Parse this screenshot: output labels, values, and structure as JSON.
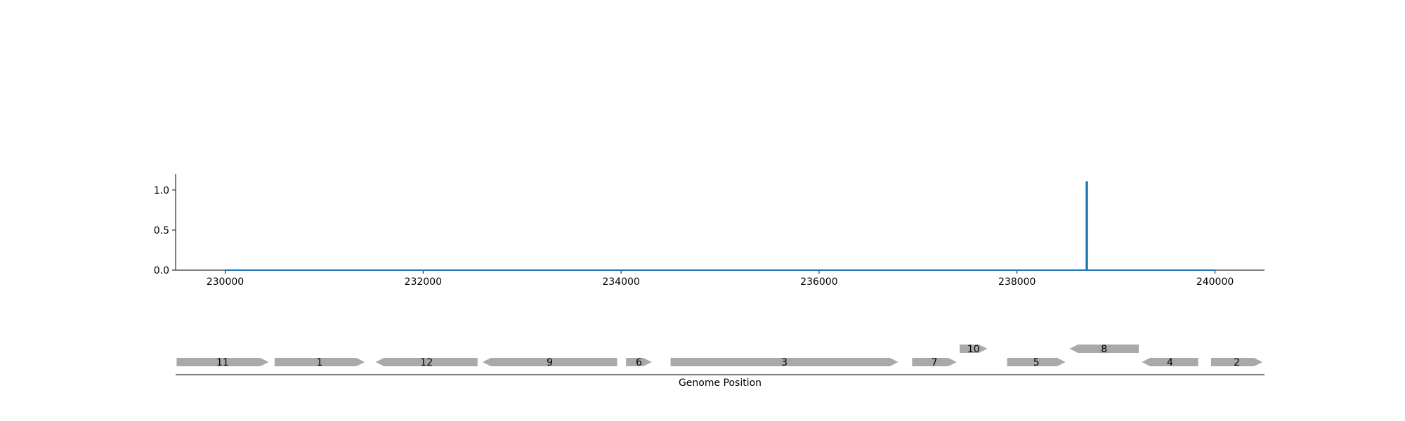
{
  "chart_data": {
    "type": "line",
    "title": "",
    "xlabel": "Genome Position",
    "ylabel": "",
    "xlim": [
      229500,
      240500
    ],
    "ylim": [
      0,
      1.2
    ],
    "x_ticks": [
      230000,
      232000,
      234000,
      236000,
      238000,
      240000
    ],
    "x_tick_labels": [
      "230000",
      "232000",
      "234000",
      "236000",
      "238000",
      "240000"
    ],
    "y_ticks": [
      0.0,
      0.5,
      1.0
    ],
    "y_tick_labels": [
      "0.0",
      "0.5",
      "1.0"
    ],
    "grid": false,
    "series": [
      {
        "color": "#1f77b4",
        "x": [
          230000,
          238700,
          238700,
          238710,
          238710,
          240000
        ],
        "y": [
          0,
          0,
          1.1,
          1.1,
          0,
          0
        ]
      }
    ]
  },
  "genes": {
    "color": "#a9a9a9",
    "items": [
      {
        "label": "11",
        "start": 229510,
        "end": 230440,
        "strand": 1,
        "row": 0
      },
      {
        "label": "1",
        "start": 230500,
        "end": 231410,
        "strand": 1,
        "row": 0
      },
      {
        "label": "12",
        "start": 231520,
        "end": 232550,
        "strand": -1,
        "row": 0
      },
      {
        "label": "9",
        "start": 232600,
        "end": 233960,
        "strand": -1,
        "row": 0
      },
      {
        "label": "6",
        "start": 234050,
        "end": 234310,
        "strand": 1,
        "row": 0
      },
      {
        "label": "3",
        "start": 234500,
        "end": 236800,
        "strand": 1,
        "row": 0
      },
      {
        "label": "7",
        "start": 236940,
        "end": 237390,
        "strand": 1,
        "row": 0
      },
      {
        "label": "10",
        "start": 237420,
        "end": 237700,
        "strand": 1,
        "row": 1
      },
      {
        "label": "5",
        "start": 237900,
        "end": 238490,
        "strand": 1,
        "row": 0
      },
      {
        "label": "8",
        "start": 238530,
        "end": 239230,
        "strand": -1,
        "row": 1
      },
      {
        "label": "4",
        "start": 239260,
        "end": 239830,
        "strand": -1,
        "row": 0
      },
      {
        "label": "2",
        "start": 239960,
        "end": 240480,
        "strand": 1,
        "row": 0
      }
    ]
  }
}
